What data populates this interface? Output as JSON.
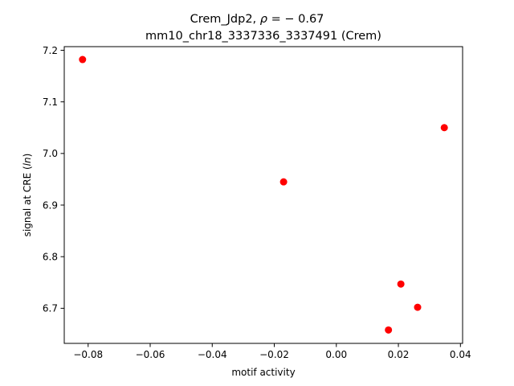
{
  "chart_data": {
    "type": "scatter",
    "title_line1_prefix": "Crem_Jdp2, ",
    "title_line1_rho": "ρ",
    "title_line1_suffix": " = − 0.67",
    "title_line2": "mm10_chr18_3337336_3337491 (Crem)",
    "xlabel": "motif activity",
    "ylabel_prefix": "signal at CRE (",
    "ylabel_italic": "ln",
    "ylabel_suffix": ")",
    "xlim": [
      -0.0877,
      0.0407
    ],
    "ylim": [
      6.632,
      7.207
    ],
    "xticks": [
      -0.08,
      -0.06,
      -0.04,
      -0.02,
      0.0,
      0.02,
      0.04
    ],
    "xtick_labels": [
      "−0.08",
      "−0.06",
      "−0.04",
      "−0.02",
      "0.00",
      "0.02",
      "0.04"
    ],
    "yticks": [
      6.7,
      6.8,
      6.9,
      7.0,
      7.1,
      7.2
    ],
    "ytick_labels": [
      "6.7",
      "6.8",
      "6.9",
      "7.0",
      "7.1",
      "7.2"
    ],
    "marker_color": "#ff0000",
    "grid": false,
    "legend": "none",
    "points": [
      {
        "x": -0.0818,
        "y": 7.182
      },
      {
        "x": -0.017,
        "y": 6.945
      },
      {
        "x": 0.0348,
        "y": 7.05
      },
      {
        "x": 0.0208,
        "y": 6.747
      },
      {
        "x": 0.0262,
        "y": 6.702
      },
      {
        "x": 0.0168,
        "y": 6.658
      }
    ]
  }
}
